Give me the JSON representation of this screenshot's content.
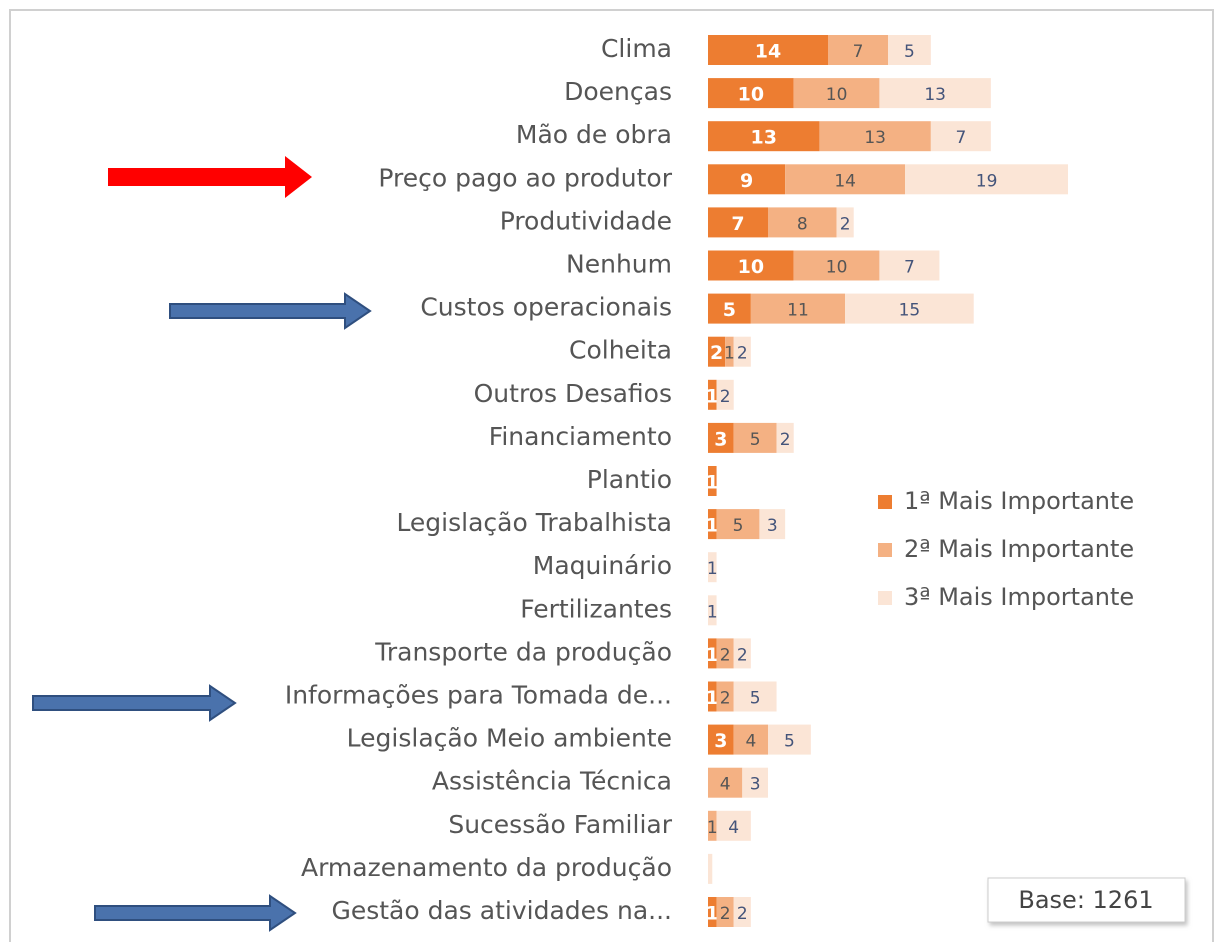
{
  "chart_data": {
    "type": "stacked-bar-horizontal",
    "categories": [
      "Clima",
      "Doenças",
      "Mão de obra",
      "Preço pago ao produtor",
      "Produtividade",
      "Nenhum",
      "Custos operacionais",
      "Colheita",
      "Outros Desafios",
      "Financiamento",
      "Plantio",
      "Legislação Trabalhista",
      "Maquinário",
      "Fertilizantes",
      "Transporte da produção",
      "Informações para Tomada de...",
      "Legislação Meio ambiente",
      "Assistência Técnica",
      "Sucessão Familiar",
      "Armazenamento da produção",
      "Gestão das atividades na..."
    ],
    "series": [
      {
        "name": "1ª Mais Importante",
        "color": "#ed7d31",
        "values": [
          14,
          10,
          13,
          9,
          7,
          10,
          5,
          2,
          1,
          3,
          1,
          1,
          null,
          null,
          1,
          1,
          3,
          null,
          null,
          null,
          1
        ]
      },
      {
        "name": "2ª Mais Importante",
        "color": "#f4b183",
        "values": [
          7,
          10,
          13,
          14,
          8,
          10,
          11,
          1,
          null,
          5,
          null,
          5,
          null,
          null,
          2,
          2,
          4,
          4,
          1,
          null,
          2
        ]
      },
      {
        "name": "3ª Mais Importante",
        "color": "#fbe5d6",
        "values": [
          5,
          13,
          7,
          19,
          2,
          7,
          15,
          2,
          2,
          2,
          null,
          3,
          1,
          1,
          2,
          5,
          5,
          3,
          4,
          0.5,
          2
        ]
      }
    ],
    "legend": "right",
    "annotation": "Base: 1261"
  }
}
